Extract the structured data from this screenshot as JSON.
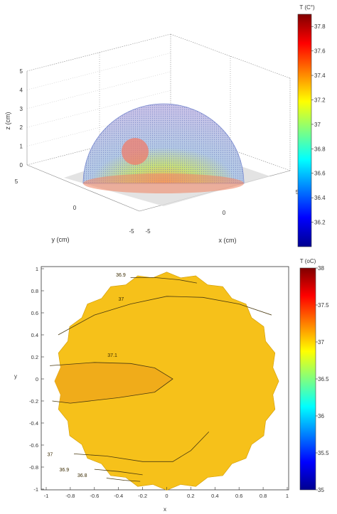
{
  "chart_data": [
    {
      "type": "surface3d",
      "xlabel": "x (cm)",
      "ylabel": "y (cm)",
      "zlabel": "z (cm)",
      "x_ticks": [
        "-5",
        "0",
        "5"
      ],
      "y_ticks": [
        "5",
        "0",
        "-5"
      ],
      "z_ticks": [
        "5",
        "4",
        "3",
        "2",
        "1",
        "0"
      ],
      "xlim": [
        -5,
        5
      ],
      "ylim": [
        -5,
        5
      ],
      "zlim": [
        0,
        5
      ],
      "grid": true,
      "hemisphere_radius_cm": 4,
      "tumor_center_cm": [
        0,
        -3,
        2
      ],
      "colorbar": {
        "label": "T (C°)",
        "range": [
          36.0,
          37.9
        ],
        "ticks": [
          "37.8",
          "37.6",
          "37.4",
          "37.2",
          "37",
          "36.8",
          "36.6",
          "36.4",
          "36.2"
        ]
      }
    },
    {
      "type": "contour",
      "xlabel": "x",
      "ylabel": "y",
      "xlim": [
        -1,
        1
      ],
      "ylim": [
        -1,
        1
      ],
      "x_ticks": [
        "-1",
        "-0.8",
        "-0.6",
        "-0.4",
        "-0.2",
        "0",
        "0.2",
        "0.4",
        "0.6",
        "0.8",
        "1"
      ],
      "y_ticks": [
        "1",
        "0.8",
        "0.6",
        "0.4",
        "0.2",
        "0",
        "-0.2",
        "-0.4",
        "-0.6",
        "-0.8",
        "-1"
      ],
      "contour_labels": [
        "36.9",
        "37",
        "37.1",
        "37",
        "36.9",
        "36.8"
      ],
      "contours": [
        {
          "level": 36.9,
          "points": [
            [
              -0.3,
              0.92
            ],
            [
              -0.1,
              0.92
            ],
            [
              0.1,
              0.9
            ],
            [
              0.25,
              0.87
            ]
          ]
        },
        {
          "level": 37,
          "points": [
            [
              -0.9,
              0.4
            ],
            [
              -0.6,
              0.58
            ],
            [
              -0.3,
              0.68
            ],
            [
              0.0,
              0.75
            ],
            [
              0.3,
              0.74
            ],
            [
              0.6,
              0.68
            ],
            [
              0.87,
              0.58
            ]
          ]
        },
        {
          "level": 37.1,
          "points": [
            [
              -0.97,
              0.12
            ],
            [
              -0.6,
              0.15
            ],
            [
              -0.3,
              0.14
            ],
            [
              -0.1,
              0.1
            ],
            [
              0.05,
              0.0
            ],
            [
              -0.1,
              -0.12
            ],
            [
              -0.4,
              -0.17
            ],
            [
              -0.8,
              -0.22
            ],
            [
              -0.95,
              -0.2
            ]
          ]
        },
        {
          "level": 37,
          "points": [
            [
              -0.77,
              -0.68
            ],
            [
              -0.5,
              -0.7
            ],
            [
              -0.2,
              -0.75
            ],
            [
              0.05,
              -0.75
            ],
            [
              0.2,
              -0.65
            ],
            [
              0.35,
              -0.48
            ]
          ]
        },
        {
          "level": 36.9,
          "points": [
            [
              -0.6,
              -0.82
            ],
            [
              -0.4,
              -0.84
            ],
            [
              -0.2,
              -0.87
            ]
          ]
        },
        {
          "level": 36.8,
          "points": [
            [
              -0.5,
              -0.9
            ],
            [
              -0.35,
              -0.92
            ],
            [
              -0.22,
              -0.93
            ]
          ]
        }
      ],
      "colorbar": {
        "label": "T (oC)",
        "range": [
          35,
          38
        ],
        "ticks": [
          "38",
          "37.5",
          "37",
          "36.5",
          "36",
          "35.5",
          "35"
        ]
      }
    }
  ]
}
